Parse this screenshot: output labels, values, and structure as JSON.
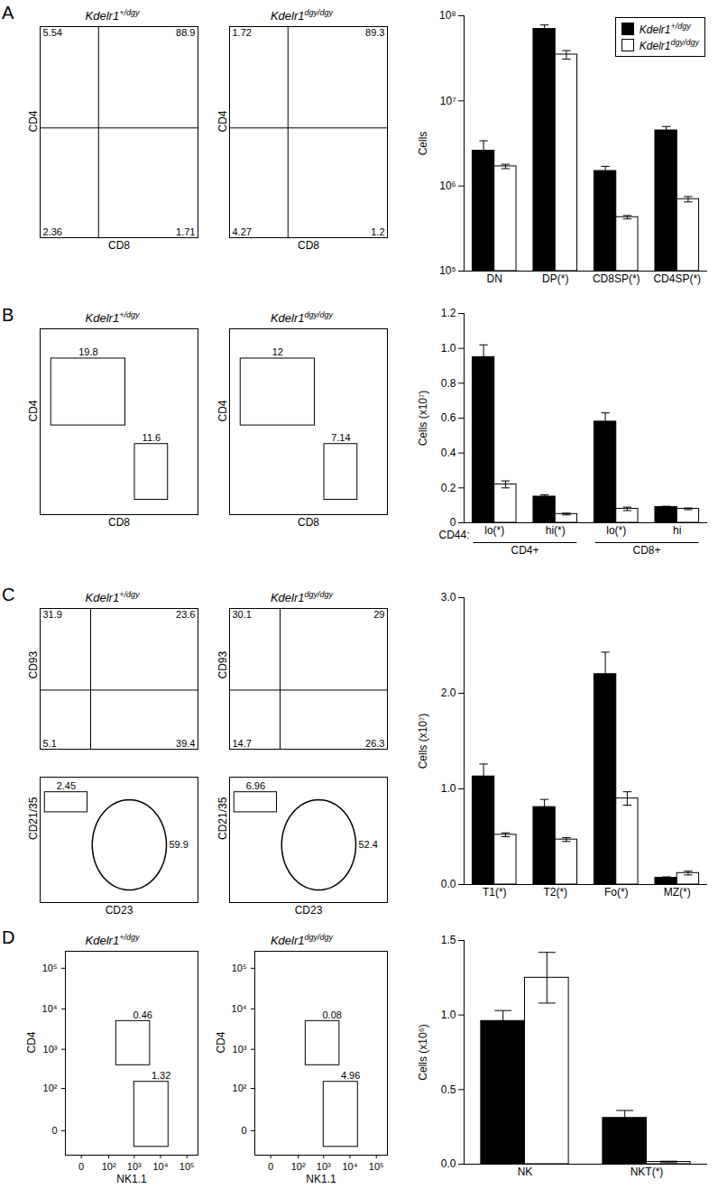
{
  "genotypes": [
    {
      "name": "Kdelr1",
      "superscript": "+/dgy",
      "color": "#000000"
    },
    {
      "name": "Kdelr1",
      "superscript": "dgy/dgy",
      "color": "#ffffff"
    }
  ],
  "chart_data": [
    {
      "panel": "A",
      "type": "flow",
      "genotype": 0,
      "xlabel": "CD8",
      "ylabel": "CD4",
      "xlim": [
        0,
        1
      ],
      "ylim": [
        0,
        1
      ],
      "tick_labels": false,
      "quadrant": {
        "x": 0.37,
        "y": 0.52,
        "values": {
          "top-left": 5.54,
          "top-right": 88.9,
          "bottom-left": 2.36,
          "bottom-right": 1.71
        }
      },
      "gates": []
    },
    {
      "panel": "A",
      "type": "flow",
      "genotype": 1,
      "xlabel": "CD8",
      "ylabel": "CD4",
      "xlim": [
        0,
        1
      ],
      "ylim": [
        0,
        1
      ],
      "tick_labels": false,
      "quadrant": {
        "x": 0.37,
        "y": 0.52,
        "values": {
          "top-left": 1.72,
          "top-right": 89.3,
          "bottom-left": 4.27,
          "bottom-right": 1.2
        }
      },
      "gates": []
    },
    {
      "panel": "A",
      "type": "bar",
      "ylabel": "Cells",
      "categories": [
        "DN",
        "DP(*)",
        "CD8SP(*)",
        "CD4SP(*)"
      ],
      "log": "y",
      "ylim": [
        100000,
        100000000
      ],
      "yticks": [
        {
          "value": 100000,
          "label": "10⁵"
        },
        {
          "value": 1000000,
          "label": "10⁶"
        },
        {
          "value": 10000000,
          "label": "10⁷"
        },
        {
          "value": 100000000,
          "label": "10⁸"
        }
      ],
      "legend": "top-right",
      "series": [
        {
          "genotype": 0,
          "values": [
            2600000,
            70000000,
            1500000,
            4500000
          ],
          "errors": [
            800000,
            8000000,
            200000,
            500000
          ]
        },
        {
          "genotype": 1,
          "values": [
            1700000,
            35000000,
            430000,
            700000
          ],
          "errors": [
            100000,
            4000000,
            20000,
            50000
          ]
        }
      ]
    },
    {
      "panel": "B",
      "type": "flow",
      "genotype": 0,
      "xlabel": "CD8",
      "ylabel": "CD4",
      "xlim": [
        0,
        1
      ],
      "ylim": [
        0,
        1
      ],
      "tick_labels": false,
      "gates": [
        {
          "x": [
            0.07,
            0.54
          ],
          "y": [
            0.48,
            0.84
          ],
          "value": 19.8
        },
        {
          "x": [
            0.6,
            0.81
          ],
          "y": [
            0.08,
            0.38
          ],
          "value": 11.6
        }
      ]
    },
    {
      "panel": "B",
      "type": "flow",
      "genotype": 1,
      "xlabel": "CD8",
      "ylabel": "CD4",
      "xlim": [
        0,
        1
      ],
      "ylim": [
        0,
        1
      ],
      "tick_labels": false,
      "gates": [
        {
          "x": [
            0.07,
            0.54
          ],
          "y": [
            0.48,
            0.84
          ],
          "value": 12
        },
        {
          "x": [
            0.6,
            0.81
          ],
          "y": [
            0.08,
            0.38
          ],
          "value": 7.14
        }
      ]
    },
    {
      "panel": "B",
      "type": "bar",
      "ylabel": "Cells (x10⁷)",
      "xlabel": "CD44:",
      "categories": [
        "lo(*)",
        "hi(*)",
        "lo(*)",
        "hi"
      ],
      "groups": [
        {
          "label": "CD4+",
          "span": [
            0,
            1
          ]
        },
        {
          "label": "CD8+",
          "span": [
            2,
            3
          ]
        }
      ],
      "ylim": [
        0,
        1.2
      ],
      "yticks": [
        0,
        0.2,
        0.4,
        0.6,
        0.8,
        {
          "value": 1,
          "label": "1.0"
        },
        1.2
      ],
      "series": [
        {
          "genotype": 0,
          "values": [
            0.95,
            0.15,
            0.58,
            0.09
          ],
          "errors": [
            0.07,
            0.01,
            0.05,
            0.005
          ]
        },
        {
          "genotype": 1,
          "values": [
            0.22,
            0.05,
            0.08,
            0.08
          ],
          "errors": [
            0.02,
            0.005,
            0.01,
            0.005
          ]
        }
      ]
    },
    {
      "panel": "C",
      "type": "flow",
      "genotype": 0,
      "ylabel": "CD93",
      "xlim": [
        0,
        1
      ],
      "ylim": [
        0,
        1
      ],
      "tick_labels": false,
      "quadrant": {
        "x": 0.32,
        "y": 0.42,
        "values": {
          "top-left": 31.9,
          "top-right": 23.6,
          "bottom-left": 5.1,
          "bottom-right": 39.4
        }
      },
      "gates": []
    },
    {
      "panel": "C",
      "type": "flow",
      "genotype": 1,
      "ylabel": "CD93",
      "xlim": [
        0,
        1
      ],
      "ylim": [
        0,
        1
      ],
      "tick_labels": false,
      "quadrant": {
        "x": 0.32,
        "y": 0.42,
        "values": {
          "top-left": 30.1,
          "top-right": 29,
          "bottom-left": 14.7,
          "bottom-right": 26.3
        }
      },
      "gates": []
    },
    {
      "panel": "C",
      "type": "flow",
      "xlabel": "CD23",
      "ylabel": "CD21/35",
      "xlim": [
        0,
        1
      ],
      "ylim": [
        0,
        1
      ],
      "tick_labels": false,
      "gates": [
        {
          "x": [
            0.03,
            0.3
          ],
          "y": [
            0.72,
            0.88
          ],
          "value": 2.45
        },
        {
          "x": [
            0.33,
            0.8
          ],
          "y": [
            0.1,
            0.82
          ],
          "value": 59.9,
          "marker": "ellipse"
        }
      ]
    },
    {
      "panel": "C",
      "type": "flow",
      "xlabel": "CD23",
      "ylabel": "CD21/35",
      "xlim": [
        0,
        1
      ],
      "ylim": [
        0,
        1
      ],
      "tick_labels": false,
      "gates": [
        {
          "x": [
            0.03,
            0.3
          ],
          "y": [
            0.72,
            0.88
          ],
          "value": 6.96
        },
        {
          "x": [
            0.33,
            0.8
          ],
          "y": [
            0.1,
            0.82
          ],
          "value": 52.4,
          "marker": "ellipse"
        }
      ]
    },
    {
      "panel": "C",
      "type": "bar",
      "ylabel": "Cells (x10⁷)",
      "categories": [
        "T1(*)",
        "T2(*)",
        "Fo(*)",
        "MZ(*)"
      ],
      "ylim": [
        0,
        3
      ],
      "yticks": [
        {
          "value": 0,
          "label": "0.0"
        },
        {
          "value": 1,
          "label": "1.0"
        },
        {
          "value": 2,
          "label": "2.0"
        },
        {
          "value": 3,
          "label": "3.0"
        }
      ],
      "series": [
        {
          "genotype": 0,
          "values": [
            1.13,
            0.81,
            2.2,
            0.07
          ],
          "errors": [
            0.13,
            0.08,
            0.23,
            0.01
          ]
        },
        {
          "genotype": 1,
          "values": [
            0.52,
            0.47,
            0.9,
            0.12
          ],
          "errors": [
            0.02,
            0.02,
            0.07,
            0.02
          ]
        }
      ]
    },
    {
      "panel": "D",
      "type": "flow",
      "genotype": 0,
      "xlabel": "NK1.1",
      "ylabel": "CD4",
      "log": true,
      "xlim": [
        -30,
        262144
      ],
      "ylim": [
        -30,
        262144
      ],
      "xticks": [
        0,
        {
          "value": 100,
          "label": "10²"
        },
        {
          "value": 1000,
          "label": "10³"
        },
        {
          "value": 10000,
          "label": "10⁴"
        },
        {
          "value": 100000,
          "label": "10⁵"
        }
      ],
      "yticks": [
        0,
        {
          "value": 100,
          "label": "10²"
        },
        {
          "value": 1000,
          "label": "10³"
        },
        {
          "value": 10000,
          "label": "10⁴"
        },
        {
          "value": 100000,
          "label": "10⁵"
        }
      ],
      "gates": [
        {
          "x": [
            200,
            4000
          ],
          "y": [
            400,
            5000
          ],
          "value": 0.46
        },
        {
          "x": [
            1000,
            20000
          ],
          "y": [
            -15,
            150
          ],
          "value": 1.32
        }
      ]
    },
    {
      "panel": "D",
      "type": "flow",
      "genotype": 1,
      "xlabel": "NK1.1",
      "ylabel": "CD4",
      "log": true,
      "xlim": [
        -30,
        262144
      ],
      "ylim": [
        -30,
        262144
      ],
      "xticks": [
        0,
        {
          "value": 100,
          "label": "10²"
        },
        {
          "value": 1000,
          "label": "10³"
        },
        {
          "value": 10000,
          "label": "10⁴"
        },
        {
          "value": 100000,
          "label": "10⁵"
        }
      ],
      "yticks": [
        0,
        {
          "value": 100,
          "label": "10²"
        },
        {
          "value": 1000,
          "label": "10³"
        },
        {
          "value": 10000,
          "label": "10⁴"
        },
        {
          "value": 100000,
          "label": "10⁵"
        }
      ],
      "gates": [
        {
          "x": [
            200,
            4000
          ],
          "y": [
            400,
            5000
          ],
          "value": 0.08
        },
        {
          "x": [
            1000,
            20000
          ],
          "y": [
            -15,
            150
          ],
          "value": 4.96
        }
      ]
    },
    {
      "panel": "D",
      "type": "bar",
      "ylabel": "Cells (x10⁶)",
      "categories": [
        "NK",
        "NKT(*)"
      ],
      "ylim": [
        0,
        1.5
      ],
      "yticks": [
        {
          "value": 0,
          "label": "0.0"
        },
        0.5,
        {
          "value": 1,
          "label": "1.0"
        },
        1.5
      ],
      "series": [
        {
          "genotype": 0,
          "values": [
            0.96,
            0.31
          ],
          "errors": [
            0.07,
            0.05
          ]
        },
        {
          "genotype": 1,
          "values": [
            1.25,
            0.015
          ],
          "errors": [
            0.17,
            0.005
          ]
        }
      ]
    }
  ]
}
